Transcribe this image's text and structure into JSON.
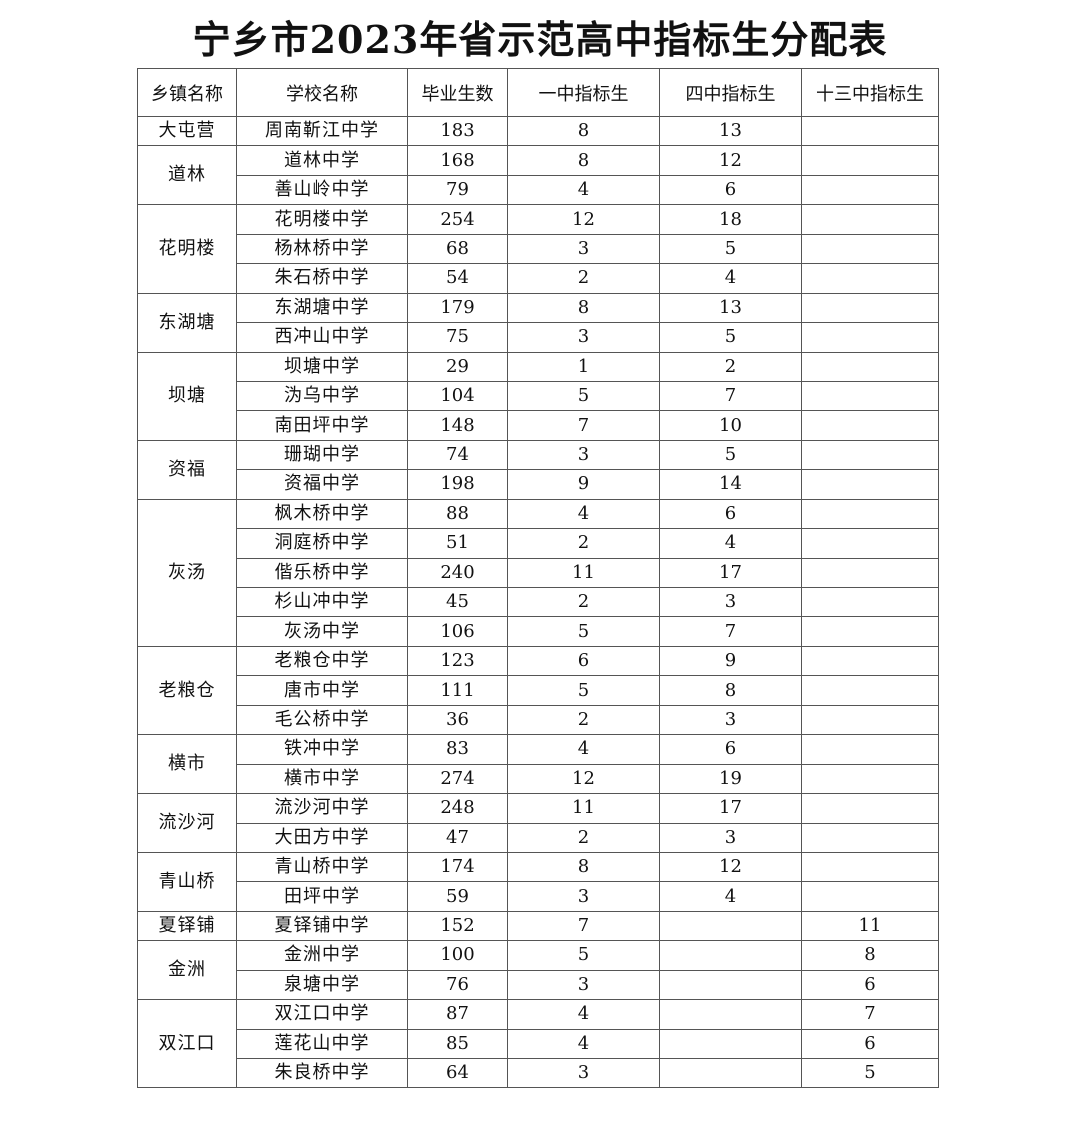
{
  "title": "宁乡市2023年省示范高中指标生分配表",
  "headers": [
    "乡镇名称",
    "学校名称",
    "毕业生数",
    "一中指标生",
    "四中指标生",
    "十三中指标生"
  ],
  "groups": [
    {
      "town": "大屯营",
      "schools": [
        [
          "周南靳江中学",
          "183",
          "8",
          "13",
          ""
        ]
      ]
    },
    {
      "town": "道林",
      "schools": [
        [
          "道林中学",
          "168",
          "8",
          "12",
          ""
        ],
        [
          "善山岭中学",
          "79",
          "4",
          "6",
          ""
        ]
      ]
    },
    {
      "town": "花明楼",
      "schools": [
        [
          "花明楼中学",
          "254",
          "12",
          "18",
          ""
        ],
        [
          "杨林桥中学",
          "68",
          "3",
          "5",
          ""
        ],
        [
          "朱石桥中学",
          "54",
          "2",
          "4",
          ""
        ]
      ]
    },
    {
      "town": "东湖塘",
      "schools": [
        [
          "东湖塘中学",
          "179",
          "8",
          "13",
          ""
        ],
        [
          "西冲山中学",
          "75",
          "3",
          "5",
          ""
        ]
      ]
    },
    {
      "town": "坝塘",
      "schools": [
        [
          "坝塘中学",
          "29",
          "1",
          "2",
          ""
        ],
        [
          "沩乌中学",
          "104",
          "5",
          "7",
          ""
        ],
        [
          "南田坪中学",
          "148",
          "7",
          "10",
          ""
        ]
      ]
    },
    {
      "town": "资福",
      "schools": [
        [
          "珊瑚中学",
          "74",
          "3",
          "5",
          ""
        ],
        [
          "资福中学",
          "198",
          "9",
          "14",
          ""
        ]
      ]
    },
    {
      "town": "灰汤",
      "schools": [
        [
          "枫木桥中学",
          "88",
          "4",
          "6",
          ""
        ],
        [
          "洞庭桥中学",
          "51",
          "2",
          "4",
          ""
        ],
        [
          "偕乐桥中学",
          "240",
          "11",
          "17",
          ""
        ],
        [
          "杉山冲中学",
          "45",
          "2",
          "3",
          ""
        ],
        [
          "灰汤中学",
          "106",
          "5",
          "7",
          ""
        ]
      ]
    },
    {
      "town": "老粮仓",
      "schools": [
        [
          "老粮仓中学",
          "123",
          "6",
          "9",
          ""
        ],
        [
          "唐市中学",
          "111",
          "5",
          "8",
          ""
        ],
        [
          "毛公桥中学",
          "36",
          "2",
          "3",
          ""
        ]
      ]
    },
    {
      "town": "横市",
      "schools": [
        [
          "铁冲中学",
          "83",
          "4",
          "6",
          ""
        ],
        [
          "横市中学",
          "274",
          "12",
          "19",
          ""
        ]
      ]
    },
    {
      "town": "流沙河",
      "schools": [
        [
          "流沙河中学",
          "248",
          "11",
          "17",
          ""
        ],
        [
          "大田方中学",
          "47",
          "2",
          "3",
          ""
        ]
      ]
    },
    {
      "town": "青山桥",
      "schools": [
        [
          "青山桥中学",
          "174",
          "8",
          "12",
          ""
        ],
        [
          "田坪中学",
          "59",
          "3",
          "4",
          ""
        ]
      ]
    },
    {
      "town": "夏铎铺",
      "schools": [
        [
          "夏铎铺中学",
          "152",
          "7",
          "",
          "11"
        ]
      ]
    },
    {
      "town": "金洲",
      "schools": [
        [
          "金洲中学",
          "100",
          "5",
          "",
          "8"
        ],
        [
          "泉塘中学",
          "76",
          "3",
          "",
          "6"
        ]
      ]
    },
    {
      "town": "双江口",
      "schools": [
        [
          "双江口中学",
          "87",
          "4",
          "",
          "7"
        ],
        [
          "莲花山中学",
          "85",
          "4",
          "",
          "6"
        ],
        [
          "朱良桥中学",
          "64",
          "3",
          "",
          "5"
        ]
      ]
    }
  ]
}
